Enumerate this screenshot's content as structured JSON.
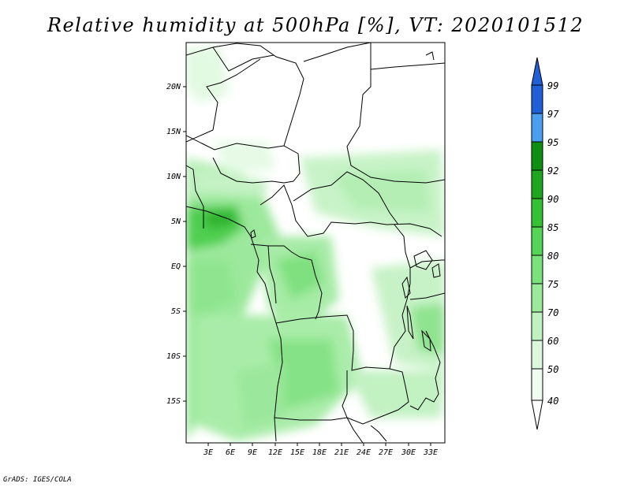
{
  "title": "Relative humidity at 500hPa [%], VT: 2020101512",
  "credit": "GrADS: IGES/COLA",
  "map": {
    "lat_labels": [
      "20N",
      "15N",
      "10N",
      "5N",
      "EQ",
      "5S",
      "10S",
      "15S"
    ],
    "lon_labels": [
      "3E",
      "6E",
      "9E",
      "12E",
      "15E",
      "18E",
      "21E",
      "24E",
      "27E",
      "30E",
      "33E"
    ]
  },
  "colorbar": {
    "labels": [
      "99",
      "97",
      "95",
      "92",
      "90",
      "85",
      "80",
      "75",
      "70",
      "60",
      "50",
      "40"
    ],
    "colors": [
      "#1f5fd8",
      "#2f7ce6",
      "#4aa0ee",
      "#0e8f10",
      "#1fa61f",
      "#36c036",
      "#55d455",
      "#7ae27a",
      "#9aea9a",
      "#bff2bf",
      "#dcf8dc",
      "#f0fcf0",
      "#ffffff"
    ]
  }
}
